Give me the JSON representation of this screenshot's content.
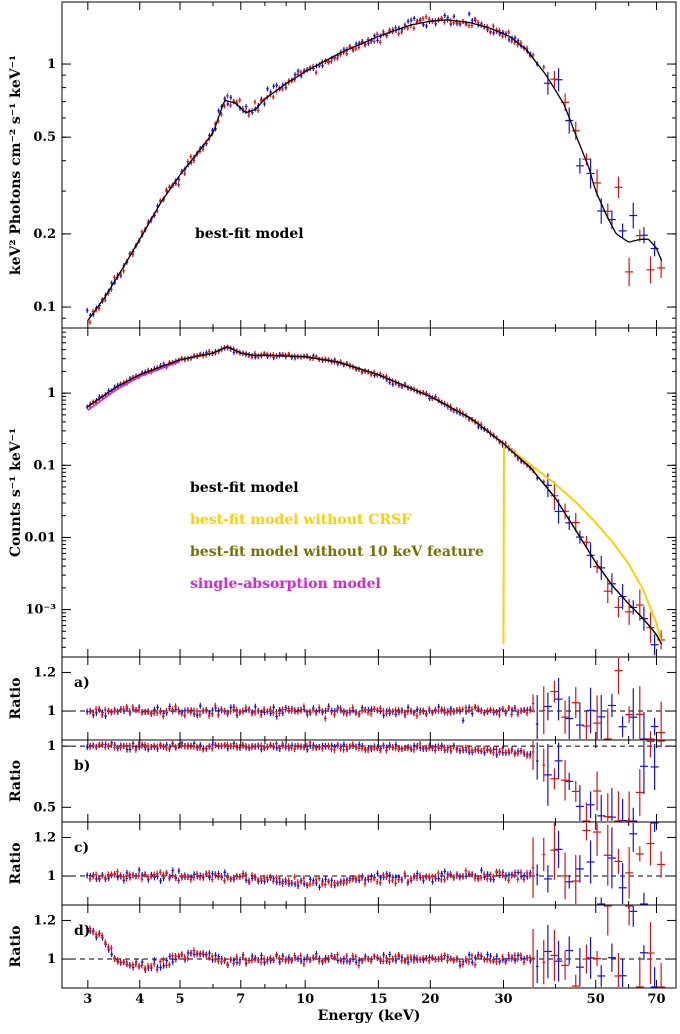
{
  "chart_data": {
    "type": "scatter",
    "x_axis": {
      "label": "Energy (keV)",
      "scale": "log",
      "range": [
        2.6,
        78
      ],
      "ticks": [
        3,
        4,
        5,
        7,
        10,
        15,
        20,
        30,
        50,
        70
      ],
      "tick_labels": [
        "3",
        "4",
        "5",
        "7",
        "10",
        "15",
        "20",
        "30",
        "50",
        "70"
      ]
    },
    "colors": {
      "series_a": "#1010e0",
      "series_b": "#e01010",
      "best_fit": "#000000",
      "no_crsf": "#ffd000",
      "no_10kev": "#7a7000",
      "single_abs": "#e020e0"
    },
    "panels": [
      {
        "id": "unfolded",
        "ylabel": "keV² Photons cm⁻² s⁻¹ keV⁻¹",
        "yscale": "log",
        "ylim": [
          0.082,
          1.8
        ],
        "yticks": [
          0.1,
          0.2,
          0.5,
          1
        ],
        "ytick_labels": [
          "0.1",
          "0.2",
          "0.5",
          "1"
        ],
        "legend": [
          {
            "text": "best-fit model",
            "color": "#000000"
          }
        ],
        "model": [
          [
            3.0,
            0.088
          ],
          [
            3.3,
            0.11
          ],
          [
            3.6,
            0.14
          ],
          [
            4.0,
            0.19
          ],
          [
            4.5,
            0.27
          ],
          [
            5.0,
            0.35
          ],
          [
            5.5,
            0.43
          ],
          [
            6.0,
            0.52
          ],
          [
            6.4,
            0.71
          ],
          [
            6.8,
            0.69
          ],
          [
            7.2,
            0.63
          ],
          [
            7.6,
            0.65
          ],
          [
            8.0,
            0.72
          ],
          [
            9.0,
            0.83
          ],
          [
            10.0,
            0.93
          ],
          [
            12.0,
            1.1
          ],
          [
            15.0,
            1.3
          ],
          [
            18.0,
            1.45
          ],
          [
            20.0,
            1.5
          ],
          [
            22.0,
            1.52
          ],
          [
            25.0,
            1.48
          ],
          [
            28.0,
            1.4
          ],
          [
            31.0,
            1.3
          ],
          [
            34.0,
            1.15
          ],
          [
            38.0,
            0.9
          ],
          [
            42.0,
            0.68
          ],
          [
            45.0,
            0.5
          ],
          [
            48.0,
            0.38
          ],
          [
            50.0,
            0.3
          ],
          [
            53.0,
            0.24
          ],
          [
            56.0,
            0.2
          ],
          [
            60.0,
            0.185
          ],
          [
            64.0,
            0.19
          ],
          [
            67.0,
            0.19
          ],
          [
            70.0,
            0.175
          ],
          [
            72.0,
            0.155
          ]
        ],
        "series": [
          {
            "name": "",
            "color_key": "series_a",
            "scatter": 0.025
          },
          {
            "name": "",
            "color_key": "series_b",
            "scatter": 0.025
          }
        ]
      },
      {
        "id": "counts",
        "ylabel": "Counts s⁻¹ keV⁻¹",
        "yscale": "log",
        "ylim": [
          0.00022,
          8
        ],
        "yticks": [
          0.001,
          0.01,
          0.1,
          1
        ],
        "ytick_labels": [
          "10⁻³",
          "0.01",
          "0.1",
          "1"
        ],
        "legend": [
          {
            "text": "best-fit model",
            "color": "#000000"
          },
          {
            "text": "best-fit model without CRSF",
            "color": "#ffd000"
          },
          {
            "text": "best-fit model without 10 keV feature",
            "color": "#7a7000"
          },
          {
            "text": "single-absorption model",
            "color": "#e020e0"
          }
        ],
        "model": [
          [
            3.0,
            0.65
          ],
          [
            3.5,
            1.2
          ],
          [
            4.0,
            1.8
          ],
          [
            5.0,
            2.9
          ],
          [
            6.0,
            3.6
          ],
          [
            6.5,
            4.4
          ],
          [
            7.0,
            3.6
          ],
          [
            7.5,
            3.35
          ],
          [
            8.0,
            3.35
          ],
          [
            10.0,
            3.2
          ],
          [
            12.0,
            2.7
          ],
          [
            15.0,
            1.8
          ],
          [
            20.0,
            0.9
          ],
          [
            25.0,
            0.45
          ],
          [
            30.0,
            0.2
          ],
          [
            35.0,
            0.09
          ],
          [
            40.0,
            0.035
          ],
          [
            45.0,
            0.012
          ],
          [
            50.0,
            0.0045
          ],
          [
            55.0,
            0.0021
          ],
          [
            60.0,
            0.0012
          ],
          [
            65.0,
            0.00075
          ],
          [
            70.0,
            0.00045
          ],
          [
            72.0,
            0.00033
          ]
        ],
        "model_no_crsf": [
          [
            30.0,
            0.2
          ],
          [
            35.0,
            0.1
          ],
          [
            40.0,
            0.055
          ],
          [
            45.0,
            0.03
          ],
          [
            50.0,
            0.016
          ],
          [
            55.0,
            0.0085
          ],
          [
            60.0,
            0.0043
          ],
          [
            65.0,
            0.0019
          ],
          [
            70.0,
            0.00065
          ],
          [
            72.0,
            0.00033
          ]
        ],
        "model_single_abs": [
          [
            3.0,
            0.58
          ],
          [
            3.5,
            1.1
          ],
          [
            4.0,
            1.7
          ],
          [
            5.0,
            2.75
          ]
        ],
        "series": [
          {
            "name": "",
            "color_key": "series_a",
            "scatter": 0.03
          },
          {
            "name": "",
            "color_key": "series_b",
            "scatter": 0.03
          }
        ]
      },
      {
        "id": "ratio_a",
        "letter": "a)",
        "ylabel": "Ratio",
        "ylabel_color": "#000000",
        "yscale": "linear",
        "ylim": [
          0.85,
          1.28
        ],
        "yticks": [
          1,
          1.2
        ],
        "ytick_labels": [
          "1",
          "1.2"
        ],
        "ratio_profile": [
          [
            3,
            1.0
          ],
          [
            72,
            1.0
          ]
        ]
      },
      {
        "id": "ratio_b",
        "letter": "b)",
        "ylabel": "Ratio",
        "ylabel_color": "#ffd000",
        "yscale": "linear",
        "ylim": [
          0.38,
          1.05
        ],
        "yticks": [
          0.5,
          1
        ],
        "ytick_labels": [
          "0.5",
          "1"
        ],
        "ratio_profile": [
          [
            3,
            1.0
          ],
          [
            20,
            0.99
          ],
          [
            28,
            0.96
          ],
          [
            33,
            0.95
          ],
          [
            36,
            0.9
          ],
          [
            40,
            0.78
          ],
          [
            45,
            0.58
          ],
          [
            50,
            0.45
          ],
          [
            54,
            0.4
          ],
          [
            58,
            0.42
          ],
          [
            63,
            0.55
          ],
          [
            68,
            0.72
          ],
          [
            72,
            0.85
          ]
        ]
      },
      {
        "id": "ratio_c",
        "letter": "c)",
        "ylabel": "Ratio",
        "ylabel_color": "#7a7000",
        "yscale": "linear",
        "ylim": [
          0.85,
          1.28
        ],
        "yticks": [
          1,
          1.2
        ],
        "ytick_labels": [
          "1",
          "1.2"
        ],
        "ratio_profile": [
          [
            3,
            1.0
          ],
          [
            6,
            1.0
          ],
          [
            8,
            0.98
          ],
          [
            10,
            0.965
          ],
          [
            12,
            0.97
          ],
          [
            15,
            0.99
          ],
          [
            20,
            1.0
          ],
          [
            72,
            1.0
          ]
        ]
      },
      {
        "id": "ratio_d",
        "letter": "d)",
        "ylabel": "Ratio",
        "ylabel_color": "#e020e0",
        "yscale": "linear",
        "ylim": [
          0.85,
          1.28
        ],
        "yticks": [
          1,
          1.2
        ],
        "ytick_labels": [
          "1",
          "1.2"
        ],
        "ratio_profile": [
          [
            3,
            1.16
          ],
          [
            3.2,
            1.12
          ],
          [
            3.5,
            1.0
          ],
          [
            3.8,
            0.97
          ],
          [
            4.2,
            0.96
          ],
          [
            4.6,
            0.98
          ],
          [
            5.0,
            1.02
          ],
          [
            5.5,
            1.03
          ],
          [
            6.0,
            1.01
          ],
          [
            6.5,
            0.98
          ],
          [
            7.0,
            1.0
          ],
          [
            72,
            1.0
          ]
        ]
      }
    ]
  }
}
